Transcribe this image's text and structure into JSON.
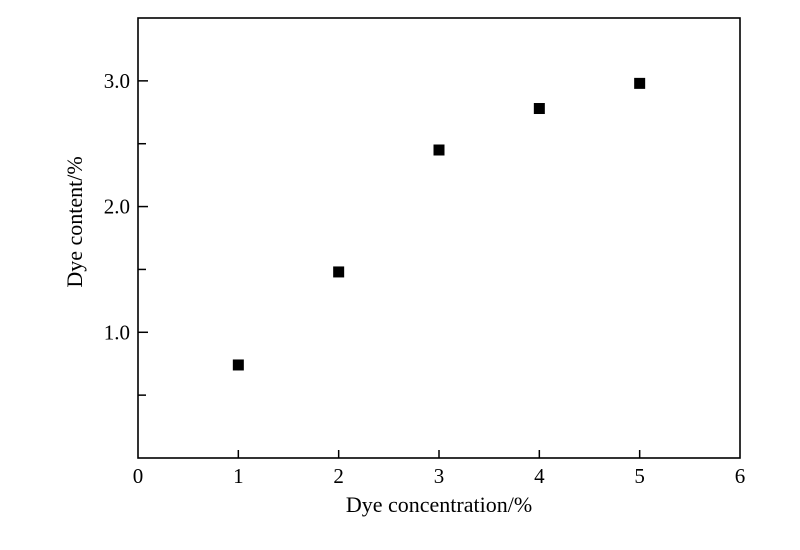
{
  "chart_data": {
    "type": "scatter",
    "title": "",
    "xlabel": "Dye concentration/%",
    "ylabel": "Dye content/%",
    "xlim": [
      0,
      6
    ],
    "ylim": [
      0,
      3.5
    ],
    "x_ticks": [
      0,
      1,
      2,
      3,
      4,
      5,
      6
    ],
    "x_tick_labels": [
      "0",
      "1",
      "2",
      "3",
      "4",
      "5",
      "6"
    ],
    "y_ticks_major": [
      1.0,
      2.0,
      3.0
    ],
    "y_tick_labels": [
      "1.0",
      "2.0",
      "3.0"
    ],
    "y_ticks_minor": [
      0.5,
      1.5,
      2.5
    ],
    "grid": false,
    "legend": "none",
    "marker": "square",
    "marker_color": "#000000",
    "series": [
      {
        "x": [
          1,
          2,
          3,
          4,
          5
        ],
        "y": [
          0.74,
          1.48,
          2.45,
          2.78,
          2.98
        ]
      }
    ]
  }
}
